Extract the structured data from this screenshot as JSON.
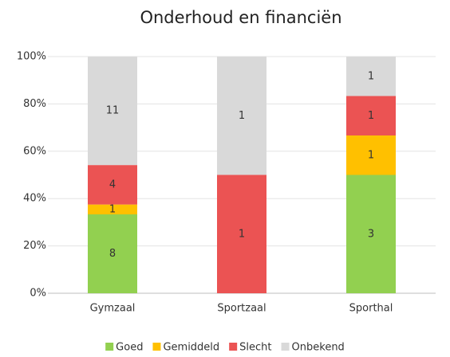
{
  "chart_data": {
    "type": "bar",
    "stacked": "percent",
    "title": "Onderhoud en financiën",
    "categories": [
      "Gymzaal",
      "Sportzaal",
      "Sporthal"
    ],
    "series": [
      {
        "name": "Goed",
        "color": "#92d050",
        "values": [
          8,
          0,
          3
        ]
      },
      {
        "name": "Gemiddeld",
        "color": "#ffc000",
        "values": [
          1,
          0,
          1
        ]
      },
      {
        "name": "Slecht",
        "color": "#eb5353",
        "values": [
          4,
          1,
          1
        ]
      },
      {
        "name": "Onbekend",
        "color": "#d9d9d9",
        "values": [
          11,
          1,
          1
        ]
      }
    ],
    "ylim": [
      0,
      100
    ],
    "yticks": [
      {
        "value": 0,
        "label": "0%"
      },
      {
        "value": 20,
        "label": "20%"
      },
      {
        "value": 40,
        "label": "40%"
      },
      {
        "value": 60,
        "label": "60%"
      },
      {
        "value": 80,
        "label": "80%"
      },
      {
        "value": 100,
        "label": "100%"
      }
    ],
    "grid": true,
    "legend": "bottom"
  }
}
